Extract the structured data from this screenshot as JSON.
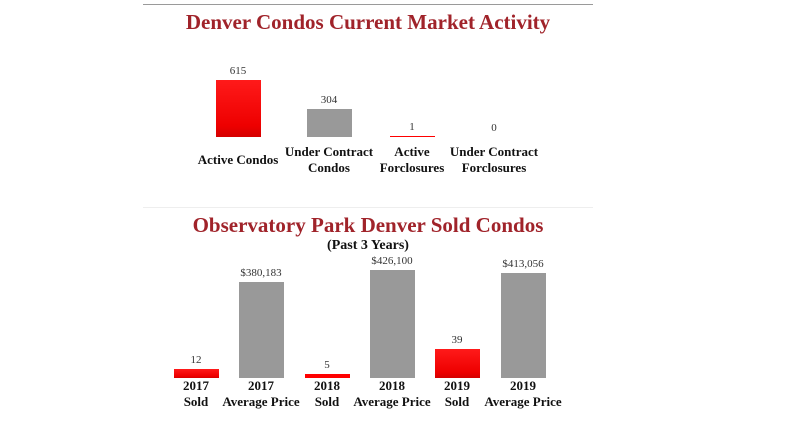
{
  "colors": {
    "title": "#a0232a",
    "red": "#ff0000",
    "gray": "#999999"
  },
  "chart_data": [
    {
      "type": "bar",
      "title": "Denver Condos Current Market Activity",
      "categories": [
        [
          "Active Condos"
        ],
        [
          "Under Contract",
          "Condos"
        ],
        [
          "Active",
          "Forclosures"
        ],
        [
          "Under Contract",
          "Forclosures"
        ]
      ],
      "values": [
        615,
        304,
        1,
        0
      ],
      "value_labels": [
        "615",
        "304",
        "1",
        "0"
      ],
      "bar_colors": [
        "red",
        "gray",
        "red",
        "red"
      ],
      "ylim": [
        0,
        615
      ]
    },
    {
      "type": "bar",
      "title": "Observatory Park Denver Sold Condos",
      "subtitle": "(Past 3 Years)",
      "categories": [
        [
          "2017",
          "Sold"
        ],
        [
          "2017",
          "Average Price"
        ],
        [
          "2018",
          "Sold"
        ],
        [
          "2018",
          "Average Price"
        ],
        [
          "2019",
          "Sold"
        ],
        [
          "2019",
          "Average Price"
        ]
      ],
      "values": [
        12,
        380183,
        5,
        426100,
        39,
        413056
      ],
      "value_labels": [
        "12",
        "$380,183",
        "5",
        "$426,100",
        "39",
        "$413,056"
      ],
      "bar_colors": [
        "red",
        "gray",
        "red",
        "gray",
        "red",
        "gray"
      ],
      "axis_groups": [
        "count",
        "price",
        "count",
        "price",
        "count",
        "price"
      ]
    }
  ]
}
